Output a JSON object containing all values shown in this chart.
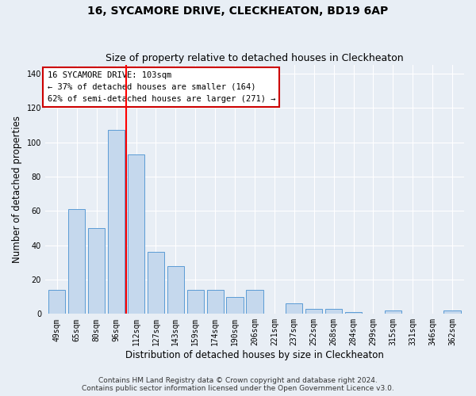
{
  "title": "16, SYCAMORE DRIVE, CLECKHEATON, BD19 6AP",
  "subtitle": "Size of property relative to detached houses in Cleckheaton",
  "xlabel": "Distribution of detached houses by size in Cleckheaton",
  "ylabel": "Number of detached properties",
  "categories": [
    "49sqm",
    "65sqm",
    "80sqm",
    "96sqm",
    "112sqm",
    "127sqm",
    "143sqm",
    "159sqm",
    "174sqm",
    "190sqm",
    "206sqm",
    "221sqm",
    "237sqm",
    "252sqm",
    "268sqm",
    "284sqm",
    "299sqm",
    "315sqm",
    "331sqm",
    "346sqm",
    "362sqm"
  ],
  "values": [
    14,
    61,
    50,
    107,
    93,
    36,
    28,
    14,
    14,
    10,
    14,
    0,
    6,
    3,
    3,
    1,
    0,
    2,
    0,
    0,
    2
  ],
  "bar_color": "#c5d8ed",
  "bar_edge_color": "#5b9bd5",
  "red_line_index": 3.5,
  "annotation_text": "16 SYCAMORE DRIVE: 103sqm\n← 37% of detached houses are smaller (164)\n62% of semi-detached houses are larger (271) →",
  "annotation_box_color": "#ffffff",
  "annotation_box_edge": "#cc0000",
  "ylim": [
    0,
    145
  ],
  "yticks": [
    0,
    20,
    40,
    60,
    80,
    100,
    120,
    140
  ],
  "footer_line1": "Contains HM Land Registry data © Crown copyright and database right 2024.",
  "footer_line2": "Contains public sector information licensed under the Open Government Licence v3.0.",
  "bg_color": "#e8eef5",
  "plot_bg_color": "#e8eef5",
  "grid_color": "#ffffff",
  "title_fontsize": 10,
  "subtitle_fontsize": 9,
  "axis_label_fontsize": 8.5,
  "tick_fontsize": 7,
  "footer_fontsize": 6.5,
  "annot_fontsize": 7.5
}
